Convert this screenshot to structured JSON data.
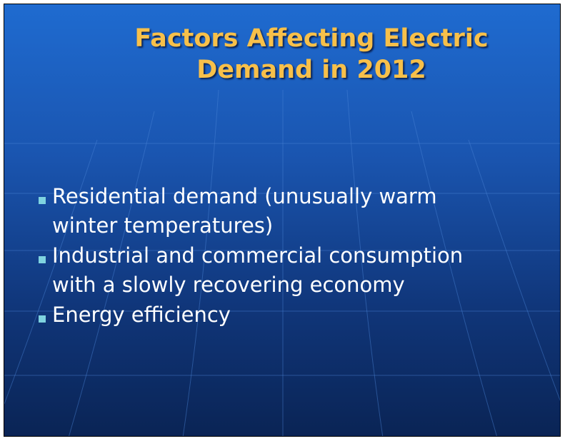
{
  "title": {
    "lines": [
      "Factors Affecting Electric",
      "Demand in 2012"
    ]
  },
  "bullets": [
    {
      "lines": [
        "Residential demand (unusually warm",
        "winter temperatures)"
      ]
    },
    {
      "lines": [
        "Industrial and commercial consumption",
        "with a slowly recovering economy"
      ]
    },
    {
      "lines": [
        "Energy efficiency"
      ]
    }
  ]
}
